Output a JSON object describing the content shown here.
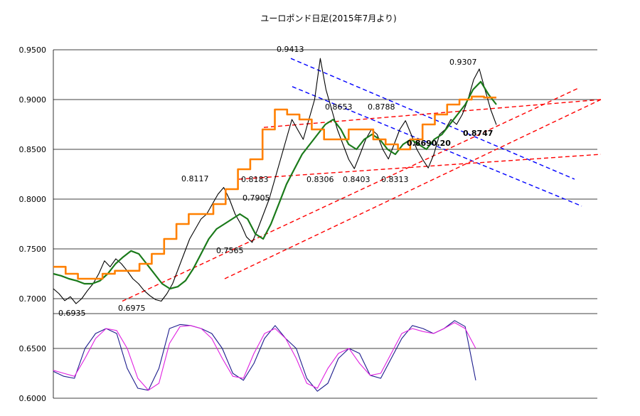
{
  "chart_data": {
    "type": "line",
    "title": "ユーロポンド日足(2015年7月より)",
    "xlabel": "",
    "ylabel": "",
    "ylim": [
      0.6,
      0.95
    ],
    "yticks": [
      "0.9500",
      "0.9000",
      "0.8500",
      "0.8000",
      "0.7500",
      "0.7000",
      "0.6500",
      "0.6000"
    ],
    "grid": true,
    "series": [
      {
        "role": "price",
        "color": "#000000",
        "values": [
          0.71,
          0.705,
          0.698,
          0.702,
          0.695,
          0.7,
          0.708,
          0.715,
          0.725,
          0.738,
          0.732,
          0.74,
          0.735,
          0.728,
          0.72,
          0.715,
          0.708,
          0.703,
          0.699,
          0.6975,
          0.705,
          0.715,
          0.73,
          0.745,
          0.76,
          0.77,
          0.78,
          0.785,
          0.795,
          0.805,
          0.8117,
          0.8,
          0.785,
          0.775,
          0.762,
          0.7565,
          0.77,
          0.785,
          0.8,
          0.82,
          0.84,
          0.86,
          0.88,
          0.87,
          0.86,
          0.88,
          0.9,
          0.9413,
          0.91,
          0.89,
          0.87,
          0.855,
          0.84,
          0.8306,
          0.845,
          0.86,
          0.87,
          0.865,
          0.85,
          0.8403,
          0.855,
          0.87,
          0.8788,
          0.865,
          0.85,
          0.84,
          0.8313,
          0.845,
          0.865,
          0.87,
          0.88,
          0.875,
          0.885,
          0.9,
          0.92,
          0.9307,
          0.91,
          0.89,
          0.8747
        ]
      },
      {
        "role": "moving-average-green",
        "color": "#1a7a1a",
        "values": [
          0.725,
          0.723,
          0.72,
          0.718,
          0.715,
          0.715,
          0.718,
          0.725,
          0.735,
          0.742,
          0.748,
          0.745,
          0.735,
          0.725,
          0.715,
          0.71,
          0.712,
          0.718,
          0.73,
          0.745,
          0.76,
          0.77,
          0.775,
          0.78,
          0.785,
          0.78,
          0.765,
          0.76,
          0.775,
          0.795,
          0.815,
          0.83,
          0.845,
          0.855,
          0.865,
          0.875,
          0.88,
          0.87,
          0.855,
          0.85,
          0.86,
          0.865,
          0.86,
          0.85,
          0.845,
          0.855,
          0.86,
          0.855,
          0.85,
          0.86,
          0.865,
          0.875,
          0.885,
          0.895,
          0.91,
          0.918,
          0.905,
          0.895
        ]
      },
      {
        "role": "moving-average-orange",
        "color": "#ff8000",
        "values": [
          0.732,
          0.725,
          0.72,
          0.72,
          0.725,
          0.728,
          0.728,
          0.735,
          0.745,
          0.76,
          0.775,
          0.785,
          0.785,
          0.795,
          0.81,
          0.83,
          0.84,
          0.87,
          0.89,
          0.885,
          0.88,
          0.87,
          0.86,
          0.86,
          0.87,
          0.87,
          0.86,
          0.855,
          0.85,
          0.86,
          0.875,
          0.885,
          0.895,
          0.9,
          0.903,
          0.902
        ]
      },
      {
        "role": "oscillator-blue",
        "color": "#1c1c8c",
        "values": [
          0.627,
          0.622,
          0.62,
          0.65,
          0.665,
          0.67,
          0.665,
          0.63,
          0.61,
          0.608,
          0.63,
          0.67,
          0.674,
          0.673,
          0.67,
          0.665,
          0.65,
          0.625,
          0.618,
          0.635,
          0.66,
          0.673,
          0.66,
          0.65,
          0.62,
          0.607,
          0.615,
          0.64,
          0.65,
          0.645,
          0.623,
          0.62,
          0.64,
          0.66,
          0.673,
          0.67,
          0.665,
          0.67,
          0.678,
          0.672,
          0.618
        ]
      },
      {
        "role": "oscillator-magenta",
        "color": "#e020e0",
        "values": [
          0.628,
          0.625,
          0.622,
          0.64,
          0.66,
          0.67,
          0.668,
          0.65,
          0.62,
          0.608,
          0.615,
          0.655,
          0.672,
          0.673,
          0.67,
          0.66,
          0.64,
          0.622,
          0.62,
          0.645,
          0.665,
          0.67,
          0.66,
          0.64,
          0.615,
          0.61,
          0.63,
          0.645,
          0.65,
          0.635,
          0.623,
          0.625,
          0.645,
          0.665,
          0.67,
          0.667,
          0.665,
          0.67,
          0.676,
          0.67,
          0.65
        ]
      }
    ],
    "annotations": [
      {
        "text": "0.9413",
        "value": 0.9413,
        "bold": false
      },
      {
        "text": "0.9307",
        "value": 0.9307,
        "bold": false
      },
      {
        "text": "0.8653",
        "value": 0.8653,
        "bold": false
      },
      {
        "text": "0.8788",
        "value": 0.8788,
        "bold": false
      },
      {
        "text": "0.8747",
        "value": 0.8747,
        "bold": true
      },
      {
        "text": "0.8690.20",
        "value": 0.869,
        "bold": true
      },
      {
        "text": "0.8117",
        "value": 0.8117,
        "bold": false
      },
      {
        "text": "0.8183",
        "value": 0.8183,
        "bold": false
      },
      {
        "text": "0.7905",
        "value": 0.7905,
        "bold": false
      },
      {
        "text": "0.8306",
        "value": 0.8306,
        "bold": false
      },
      {
        "text": "0.8403",
        "value": 0.8403,
        "bold": false
      },
      {
        "text": "0.8313",
        "value": 0.8313,
        "bold": false
      },
      {
        "text": "0.7565",
        "value": 0.7565,
        "bold": false
      },
      {
        "text": "0.6935",
        "value": 0.6935,
        "bold": false
      },
      {
        "text": "0.6975",
        "value": 0.6975,
        "bold": false
      }
    ],
    "trendlines": [
      {
        "color": "#0000ff",
        "dash": true,
        "y1": 0.9413,
        "y2": 0.82
      },
      {
        "color": "#0000ff",
        "dash": true,
        "y1": 0.913,
        "y2": 0.793
      },
      {
        "color": "#ff0000",
        "dash": true,
        "y1": 0.6975,
        "y2": 0.911
      },
      {
        "color": "#ff0000",
        "dash": true,
        "y1": 0.72,
        "y2": 0.9
      },
      {
        "color": "#ff0000",
        "dash": true,
        "y1": 0.872,
        "y2": 0.9
      },
      {
        "color": "#ff0000",
        "dash": true,
        "y1": 0.82,
        "y2": 0.845
      }
    ]
  }
}
